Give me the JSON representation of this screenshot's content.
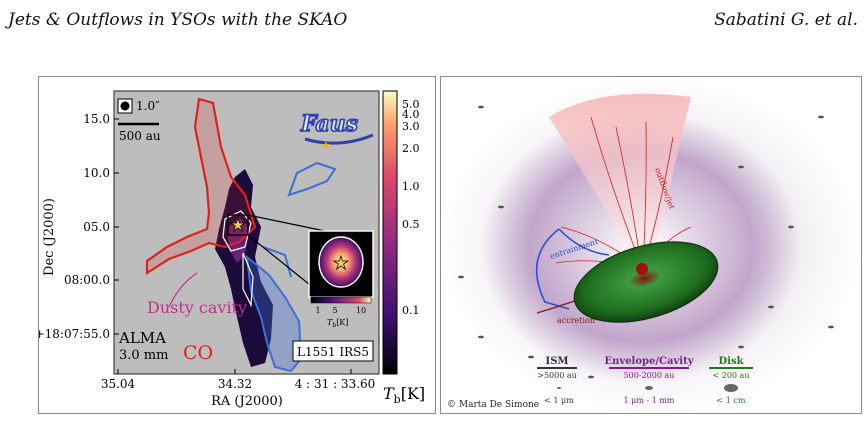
{
  "header": {
    "left": "Jets & Outflows in YSOs with the SKAO",
    "right": "Sabatini G. et al."
  },
  "left_figure": {
    "beam_label": "1.0″",
    "scalebar_label": "500 au",
    "dec_ticks": [
      "15.0",
      "10.0",
      "05.0",
      "08:00.0",
      "+18:07:55.0"
    ],
    "dec_axis_label": "Dec (J2000)",
    "ra_ticks": [
      "35.04",
      "34.32",
      "4 : 31 : 33.60"
    ],
    "ra_axis_label": "RA (J2000)",
    "colorbar_ticks": [
      "5.0",
      "4.0",
      "3.0",
      "2.0",
      "1.0",
      "0.5",
      "0.1"
    ],
    "colorbar_label": "T",
    "colorbar_label_sub": "b",
    "colorbar_label_unit": "[K]",
    "inset_ticks": [
      "1",
      "5",
      "10"
    ],
    "inset_label": "T",
    "inset_label_sub": "b",
    "inset_label_unit": "[K]",
    "dusty_cavity_label": "Dusty cavity",
    "alma_label": "ALMA",
    "wavelength_label": "3.0 mm",
    "co_label": "CO",
    "source_label": "L1551 IRS5",
    "logo_text": "Faus",
    "colors": {
      "red_lobe": "#e02020",
      "blue_lobe": "#3f6fd6",
      "cavity": "#c0308a"
    }
  },
  "right_figure": {
    "credit": "© Marta De Simone",
    "ism": {
      "title": "ISM",
      "range": ">5000 au",
      "size": "< 1 μm"
    },
    "envelope": {
      "title": "Envelope/Cavity",
      "range": "500-2000 au",
      "size": "1 μm - 1 mm"
    },
    "disk": {
      "title": "Disk",
      "range": "< 200 au",
      "size": "< 1 cm"
    },
    "entrainment_label": "entrainment",
    "accretion_label": "accretion",
    "outflow_label": "outflow/jet",
    "colors": {
      "ism": "#333333",
      "envelope": "#7a1f8a",
      "disk": "#1f7a1f",
      "entrainment": "#2a4fd0",
      "accretion": "#8a1a1a",
      "outflow": "#d02020"
    }
  }
}
